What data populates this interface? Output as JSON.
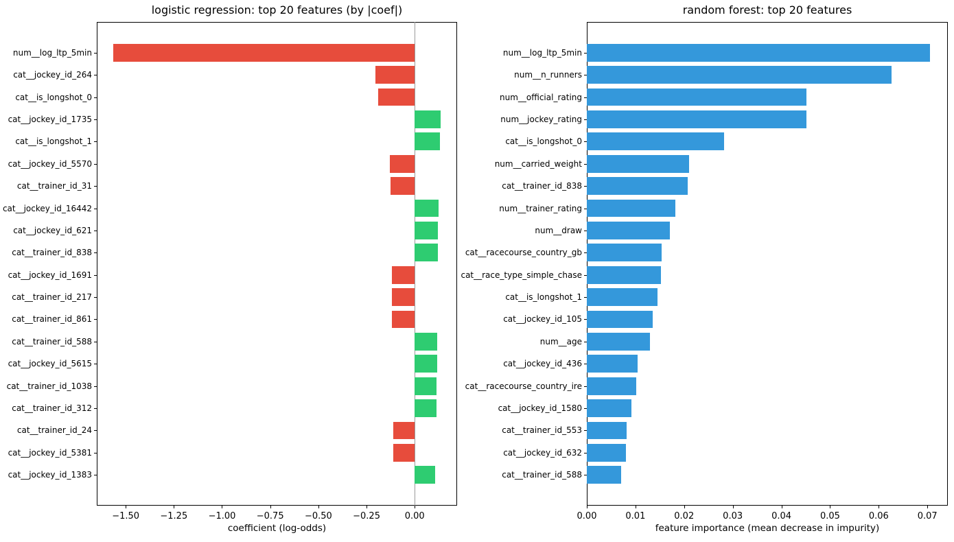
{
  "figure": {
    "background": "#ffffff",
    "text_color": "#000000"
  },
  "chart_data": [
    {
      "type": "bar",
      "orientation": "horizontal",
      "title": "logistic regression: top 20 features (by |coef|)",
      "xlabel": "coefficient (log-odds)",
      "xlim": [
        -1.65,
        0.22
      ],
      "grid": false,
      "legend": "none",
      "zero_line": {
        "value": 0,
        "color": "#999999"
      },
      "colors": {
        "positive": "#2ecc71",
        "negative": "#e74c3c"
      },
      "xticks": [
        {
          "value": -1.5,
          "label": "−1.50"
        },
        {
          "value": -1.25,
          "label": "−1.25"
        },
        {
          "value": -1.0,
          "label": "−1.00"
        },
        {
          "value": -0.75,
          "label": "−0.75"
        },
        {
          "value": -0.5,
          "label": "−0.50"
        },
        {
          "value": -0.25,
          "label": "−0.25"
        },
        {
          "value": 0.0,
          "label": "0.00"
        }
      ],
      "categories": [
        "num__log_ltp_5min",
        "cat__jockey_id_264",
        "cat__is_longshot_0",
        "cat__jockey_id_1735",
        "cat__is_longshot_1",
        "cat__jockey_id_5570",
        "cat__trainer_id_31",
        "cat__jockey_id_16442",
        "cat__jockey_id_621",
        "cat__trainer_id_838",
        "cat__jockey_id_1691",
        "cat__trainer_id_217",
        "cat__trainer_id_861",
        "cat__trainer_id_588",
        "cat__jockey_id_5615",
        "cat__trainer_id_1038",
        "cat__trainer_id_312",
        "cat__trainer_id_24",
        "cat__jockey_id_5381",
        "cat__jockey_id_1383"
      ],
      "values": [
        -1.565,
        -0.205,
        -0.19,
        0.135,
        0.131,
        -0.128,
        -0.126,
        0.125,
        0.121,
        0.12,
        -0.119,
        -0.118,
        -0.117,
        0.116,
        0.115,
        0.114,
        0.113,
        -0.112,
        -0.111,
        0.107
      ]
    },
    {
      "type": "bar",
      "orientation": "horizontal",
      "title": "random forest: top 20 features",
      "xlabel": "feature importance (mean decrease in impurity)",
      "xlim": [
        0,
        0.0742
      ],
      "grid": false,
      "legend": "none",
      "colors": {
        "default": "#3498db"
      },
      "xticks": [
        {
          "value": 0.0,
          "label": "0.00"
        },
        {
          "value": 0.01,
          "label": "0.01"
        },
        {
          "value": 0.02,
          "label": "0.02"
        },
        {
          "value": 0.03,
          "label": "0.03"
        },
        {
          "value": 0.04,
          "label": "0.04"
        },
        {
          "value": 0.05,
          "label": "0.05"
        },
        {
          "value": 0.06,
          "label": "0.06"
        },
        {
          "value": 0.07,
          "label": "0.07"
        }
      ],
      "categories": [
        "num__log_ltp_5min",
        "num__n_runners",
        "num__official_rating",
        "num__jockey_rating",
        "cat__is_longshot_0",
        "num__carried_weight",
        "cat__trainer_id_838",
        "num__trainer_rating",
        "num__draw",
        "cat__racecourse_country_gb",
        "cat__race_type_simple_chase",
        "cat__is_longshot_1",
        "cat__jockey_id_105",
        "num__age",
        "cat__jockey_id_436",
        "cat__racecourse_country_ire",
        "cat__jockey_id_1580",
        "cat__trainer_id_553",
        "cat__jockey_id_632",
        "cat__trainer_id_588"
      ],
      "values": [
        0.0706,
        0.0627,
        0.0452,
        0.0451,
        0.0282,
        0.021,
        0.0208,
        0.0182,
        0.017,
        0.0154,
        0.0153,
        0.0145,
        0.0135,
        0.013,
        0.0104,
        0.0102,
        0.0092,
        0.0082,
        0.008,
        0.0071
      ]
    }
  ]
}
